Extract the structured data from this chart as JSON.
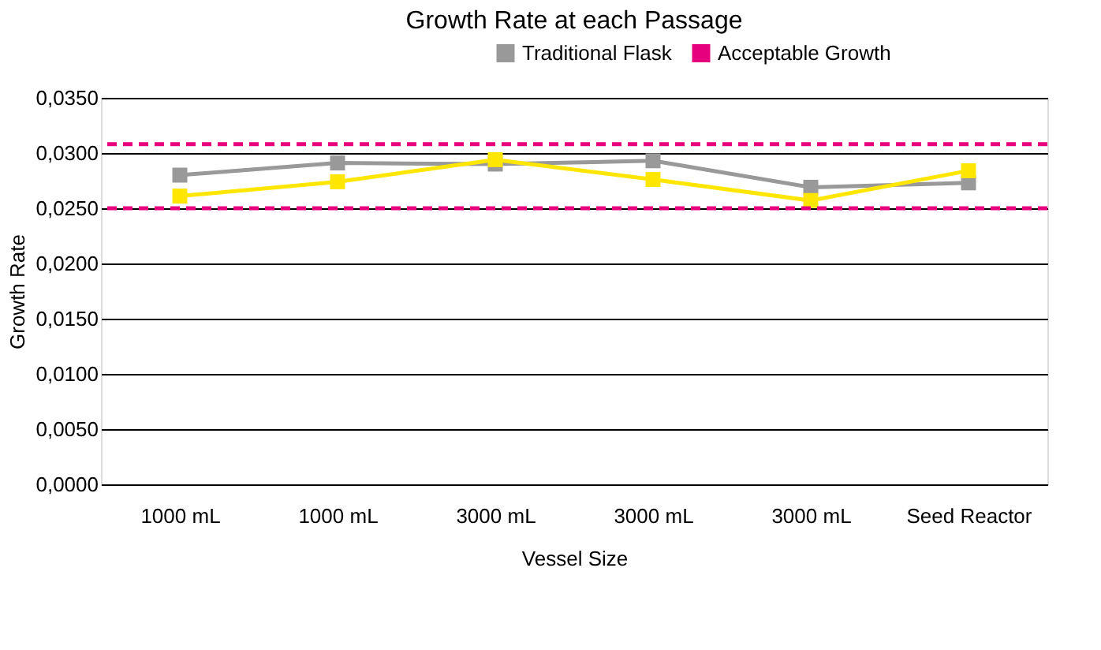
{
  "chart_data": {
    "type": "line",
    "title": "Growth Rate at each Passage",
    "xlabel": "Vessel Size",
    "ylabel": "Growth Rate",
    "categories": [
      "1000 mL",
      "1000 mL",
      "3000 mL",
      "3000 mL",
      "3000 mL",
      "Seed Reactor"
    ],
    "series": [
      {
        "color": "#ffe600",
        "values": [
          0.0261,
          0.0274,
          0.0294,
          0.0276,
          0.0257,
          0.0284
        ]
      },
      {
        "name": "Traditional Flask",
        "color": "#999999",
        "values": [
          0.028,
          0.0291,
          0.029,
          0.0293,
          0.0269,
          0.0273
        ]
      }
    ],
    "ref_lines": [
      {
        "axis": "y",
        "value": 0.0308,
        "label": "Acceptable Growth",
        "color": "#e6007e",
        "line_style": "dashed"
      },
      {
        "axis": "y",
        "value": 0.025,
        "color": "#e6007e",
        "line_style": "dashed"
      }
    ],
    "ylim": [
      0,
      0.035
    ],
    "yticks": [
      {
        "value": 0,
        "label": "0,0000"
      },
      {
        "value": 0.005,
        "label": "0,0050"
      },
      {
        "value": 0.01,
        "label": "0,0100"
      },
      {
        "value": 0.015,
        "label": "0,0150"
      },
      {
        "value": 0.02,
        "label": "0,0200"
      },
      {
        "value": 0.025,
        "label": "0,0250"
      },
      {
        "value": 0.03,
        "label": "0,0300"
      },
      {
        "value": 0.035,
        "label": "0,0350"
      }
    ],
    "grid": "y",
    "legend": "top right",
    "marker": "square",
    "line_style": "solid"
  }
}
